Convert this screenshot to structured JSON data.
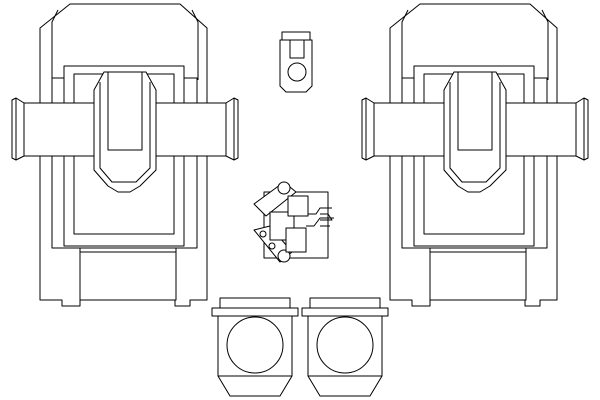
{
  "diagram": {
    "stroke_color": "#000000",
    "background": "#ffffff",
    "components": [
      {
        "name": "left-machine-unit",
        "icon": "mechanical-unit-icon"
      },
      {
        "name": "right-machine-unit",
        "icon": "mechanical-unit-icon"
      },
      {
        "name": "small-top-housing",
        "icon": "connector-icon"
      },
      {
        "name": "center-linkage-assembly",
        "icon": "linkage-icon"
      },
      {
        "name": "left-round-module",
        "icon": "round-port-icon"
      },
      {
        "name": "right-round-module",
        "icon": "round-port-icon"
      }
    ]
  }
}
